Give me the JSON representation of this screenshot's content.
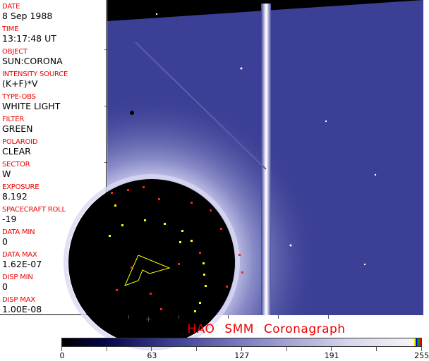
{
  "fields": [
    {
      "label": "DATE",
      "value": "8 Sep 1988"
    },
    {
      "label": "TIME",
      "value": "13:17:48 UT"
    },
    {
      "label": "OBJECT",
      "value": "SUN:CORONA"
    },
    {
      "label": "INTENSITY SOURCE",
      "value": "(K+F)*V"
    },
    {
      "label": "TYPE-OBS",
      "value": "WHITE LIGHT"
    },
    {
      "label": "FILTER",
      "value": "GREEN"
    },
    {
      "label": "POLAROID",
      "value": "CLEAR"
    },
    {
      "label": "SECTOR",
      "value": "W"
    },
    {
      "label": "EXPOSURE",
      "value": "8.192"
    },
    {
      "label": "SPACECRAFT ROLL",
      "value": "-19"
    },
    {
      "label": "DATA MIN",
      "value": "0"
    },
    {
      "label": "DATA MAX",
      "value": "1.62E-07"
    },
    {
      "label": "DISP MIN",
      "value": "0"
    },
    {
      "label": "DISP MAX",
      "value": "1.00E-08"
    }
  ],
  "title": "HAO  SMM Coronagraph",
  "colorbar": {
    "labels": [
      "0",
      "63",
      "127",
      "191",
      "255"
    ],
    "min_color": "#000000",
    "max_color": "#f4f4f6",
    "overlay_colors": [
      "#ffff00",
      "#0000ff",
      "#00aa00",
      "#ff0000"
    ]
  },
  "colors": {
    "label": "#ee0000",
    "image_bg": "#3b3f95",
    "annotation_red": "#ff2020",
    "annotation_yellow": "#ffff00"
  }
}
